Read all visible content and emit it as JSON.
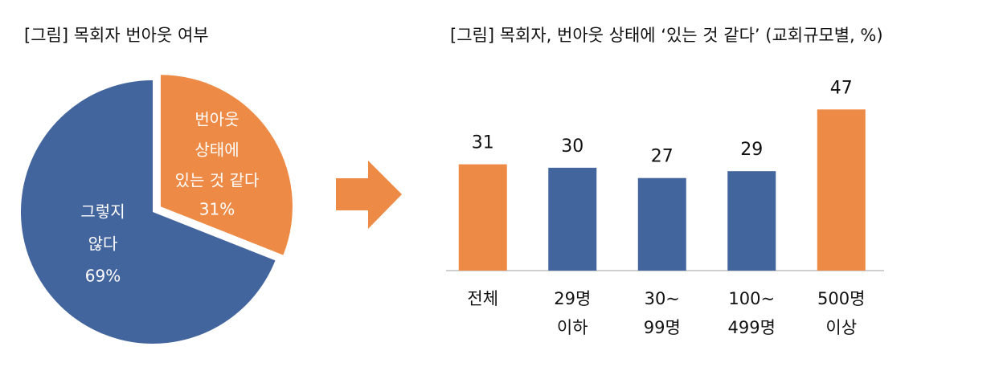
{
  "chart_data": [
    {
      "type": "pie",
      "title": "[그림] 목회자 번아웃 여부",
      "categories": [
        [
          "번아웃",
          "상태에",
          "있는 것 같다"
        ],
        [
          "그렇지",
          "않다"
        ]
      ],
      "values": [
        31,
        69
      ],
      "value_labels": [
        "31%",
        "69%"
      ],
      "colors": [
        "#ed8a45",
        "#43659e"
      ]
    },
    {
      "type": "bar",
      "title": "[그림] 목회자, 번아웃 상태에 ‘있는 것 같다’ (교회규모별, %)",
      "categories": [
        [
          "전체"
        ],
        [
          "29명",
          "이하"
        ],
        [
          "30~",
          "99명"
        ],
        [
          "100~",
          "499명"
        ],
        [
          "500명",
          "이상"
        ]
      ],
      "values": [
        31,
        30,
        27,
        29,
        47
      ],
      "colors": [
        "#ed8a45",
        "#43659e",
        "#43659e",
        "#43659e",
        "#ed8a45"
      ]
    }
  ]
}
